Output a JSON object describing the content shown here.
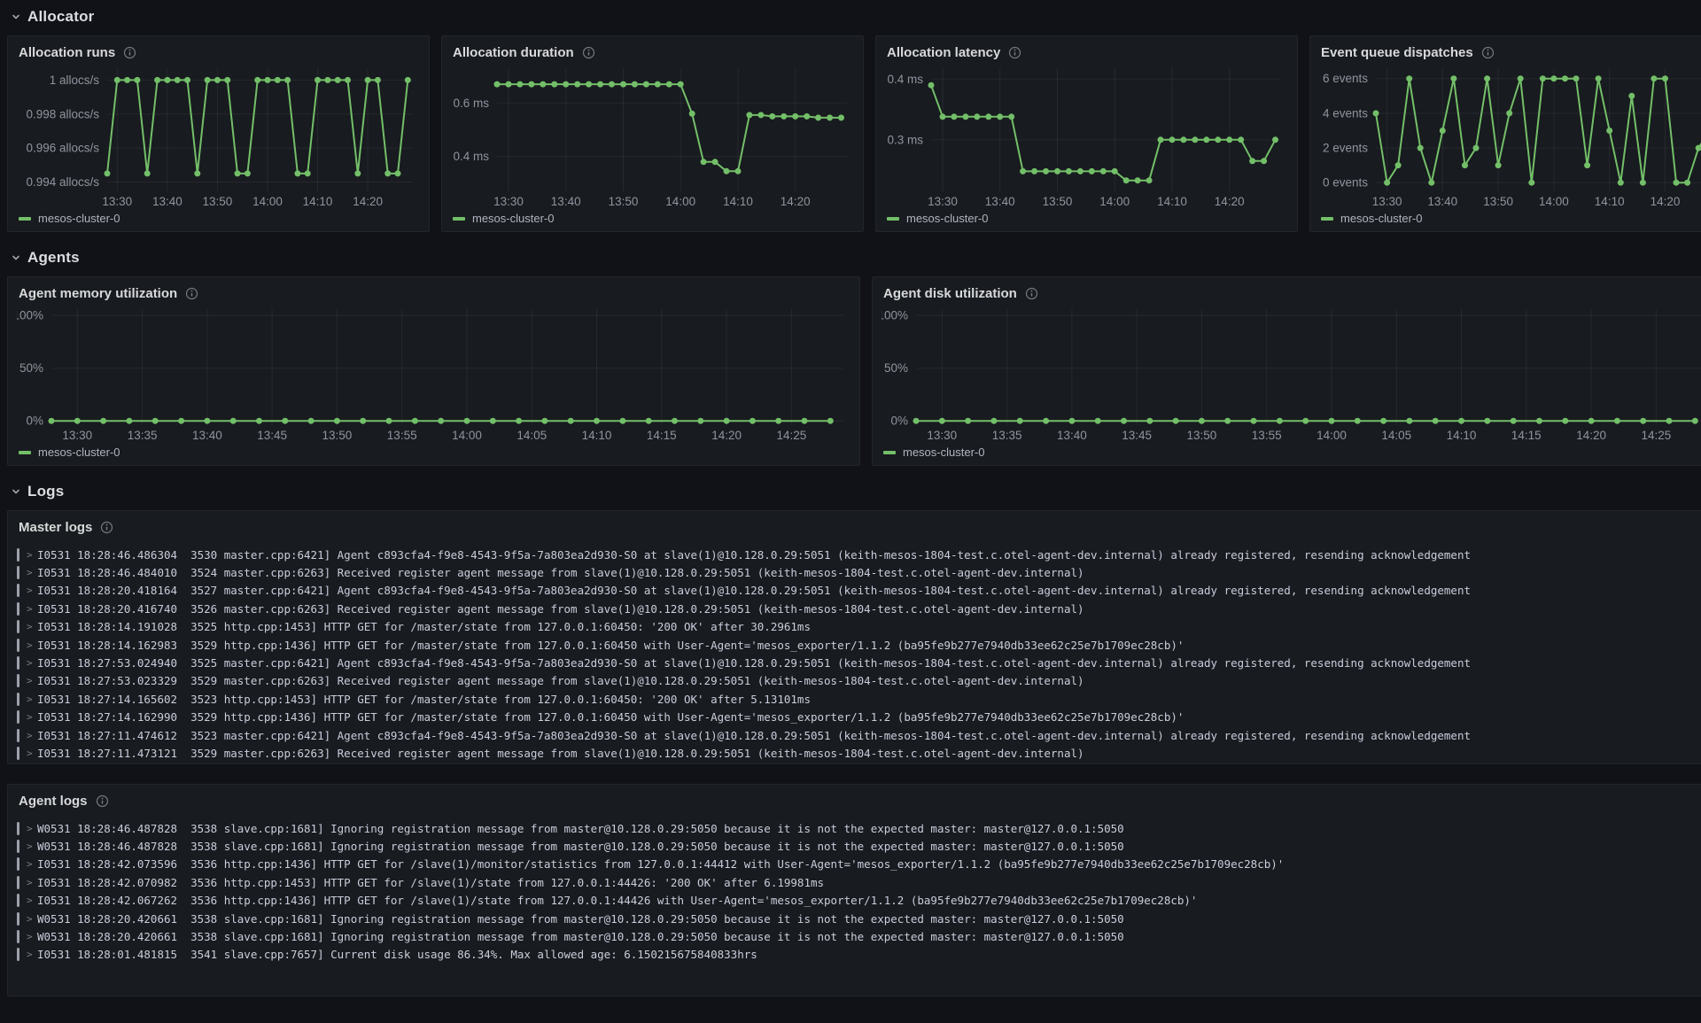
{
  "sections": {
    "allocator": {
      "title": "Allocator"
    },
    "agents": {
      "title": "Agents"
    },
    "logs": {
      "title": "Logs"
    }
  },
  "icons": {
    "log_expand": ">"
  },
  "series_color": "#73BF69",
  "charts": {
    "alloc_runs": {
      "title": "Allocation runs",
      "type": "line",
      "unit": "allocs/s",
      "legend": "mesos-cluster-0",
      "color": "#73BF69",
      "ylim": [
        0.99345,
        1.0007
      ],
      "yticks": [
        [
          1.0,
          "1 allocs/s"
        ],
        [
          0.998,
          "0.998 allocs/s"
        ],
        [
          0.996,
          "0.996 allocs/s"
        ],
        [
          0.994,
          "0.994 allocs/s"
        ]
      ],
      "xlim": [
        808,
        869
      ],
      "xticks": [
        [
          810,
          "13:30"
        ],
        [
          820,
          "13:40"
        ],
        [
          830,
          "13:50"
        ],
        [
          840,
          "14:00"
        ],
        [
          850,
          "14:10"
        ],
        [
          860,
          "14:20"
        ]
      ],
      "x_start": 808,
      "x_step": 2,
      "values": [
        0.9945,
        1,
        1,
        1,
        0.9945,
        1,
        1,
        1,
        1,
        0.9945,
        1,
        1,
        1,
        0.9945,
        0.9945,
        1,
        1,
        1,
        1,
        0.9945,
        0.9945,
        1,
        1,
        1,
        1,
        0.9945,
        1,
        1,
        0.9945,
        0.9945,
        1
      ]
    },
    "alloc_duration": {
      "title": "Allocation duration",
      "type": "line",
      "unit": "ms",
      "legend": "mesos-cluster-0",
      "color": "#73BF69",
      "ylim": [
        0.27,
        0.73
      ],
      "yticks": [
        [
          0.6,
          "0.6 ms"
        ],
        [
          0.4,
          "0.4 ms"
        ]
      ],
      "xlim": [
        808,
        869
      ],
      "xticks": [
        [
          810,
          "13:30"
        ],
        [
          820,
          "13:40"
        ],
        [
          830,
          "13:50"
        ],
        [
          840,
          "14:00"
        ],
        [
          850,
          "14:10"
        ],
        [
          860,
          "14:20"
        ]
      ],
      "x_start": 808,
      "x_step": 2,
      "values": [
        0.67,
        0.67,
        0.67,
        0.67,
        0.67,
        0.67,
        0.67,
        0.67,
        0.67,
        0.67,
        0.67,
        0.67,
        0.67,
        0.67,
        0.67,
        0.67,
        0.67,
        0.56,
        0.38,
        0.38,
        0.345,
        0.345,
        0.555,
        0.555,
        0.55,
        0.55,
        0.55,
        0.55,
        0.545,
        0.545,
        0.545
      ]
    },
    "alloc_latency": {
      "title": "Allocation latency",
      "type": "line",
      "unit": "ms",
      "legend": "mesos-cluster-0",
      "color": "#73BF69",
      "ylim": [
        0.215,
        0.418
      ],
      "yticks": [
        [
          0.4,
          "0.4 ms"
        ],
        [
          0.3,
          "0.3 ms"
        ]
      ],
      "xlim": [
        808,
        869
      ],
      "xticks": [
        [
          810,
          "13:30"
        ],
        [
          820,
          "13:40"
        ],
        [
          830,
          "13:50"
        ],
        [
          840,
          "14:00"
        ],
        [
          850,
          "14:10"
        ],
        [
          860,
          "14:20"
        ]
      ],
      "x_start": 808,
      "x_step": 2,
      "values": [
        0.39,
        0.338,
        0.338,
        0.338,
        0.338,
        0.338,
        0.338,
        0.338,
        0.248,
        0.248,
        0.248,
        0.248,
        0.248,
        0.248,
        0.248,
        0.248,
        0.248,
        0.233,
        0.233,
        0.233,
        0.3,
        0.3,
        0.3,
        0.3,
        0.3,
        0.3,
        0.3,
        0.3,
        0.265,
        0.265,
        0.3
      ]
    },
    "event_queue": {
      "title": "Event queue dispatches",
      "type": "line",
      "unit": "events",
      "legend": "mesos-cluster-0",
      "color": "#73BF69",
      "ylim": [
        -0.5,
        6.6
      ],
      "yticks": [
        [
          6,
          "6 events"
        ],
        [
          4,
          "4 events"
        ],
        [
          2,
          "2 events"
        ],
        [
          0,
          "0 events"
        ]
      ],
      "xlim": [
        808,
        869
      ],
      "xticks": [
        [
          810,
          "13:30"
        ],
        [
          820,
          "13:40"
        ],
        [
          830,
          "13:50"
        ],
        [
          840,
          "14:00"
        ],
        [
          850,
          "14:10"
        ],
        [
          860,
          "14:20"
        ]
      ],
      "x_start": 808,
      "x_step": 2,
      "values": [
        4,
        0,
        1,
        6,
        2,
        0,
        3,
        6,
        1,
        2,
        6,
        1,
        4,
        6,
        0,
        6,
        6,
        6,
        6,
        1,
        6,
        3,
        0,
        5,
        0,
        6,
        6,
        0,
        0,
        2,
        3
      ]
    },
    "agent_mem": {
      "title": "Agent memory utilization",
      "type": "line",
      "unit": "%",
      "legend": "mesos-cluster-0",
      "color": "#73BF69",
      "ylim": [
        -4,
        106
      ],
      "yticks": [
        [
          100,
          "100%"
        ],
        [
          50,
          "50%"
        ],
        [
          0,
          "0%"
        ]
      ],
      "xlim": [
        808,
        869
      ],
      "xticks": [
        [
          810,
          "13:30"
        ],
        [
          815,
          "13:35"
        ],
        [
          820,
          "13:40"
        ],
        [
          825,
          "13:45"
        ],
        [
          830,
          "13:50"
        ],
        [
          835,
          "13:55"
        ],
        [
          840,
          "14:00"
        ],
        [
          845,
          "14:05"
        ],
        [
          850,
          "14:10"
        ],
        [
          855,
          "14:15"
        ],
        [
          860,
          "14:20"
        ],
        [
          865,
          "14:25"
        ]
      ],
      "x_start": 808,
      "x_step": 2,
      "values": [
        0,
        0,
        0,
        0,
        0,
        0,
        0,
        0,
        0,
        0,
        0,
        0,
        0,
        0,
        0,
        0,
        0,
        0,
        0,
        0,
        0,
        0,
        0,
        0,
        0,
        0,
        0,
        0,
        0,
        0,
        0
      ]
    },
    "agent_disk": {
      "title": "Agent disk utilization",
      "type": "line",
      "unit": "%",
      "legend": "mesos-cluster-0",
      "color": "#73BF69",
      "ylim": [
        -4,
        106
      ],
      "yticks": [
        [
          100,
          "100%"
        ],
        [
          50,
          "50%"
        ],
        [
          0,
          "0%"
        ]
      ],
      "xlim": [
        808,
        869
      ],
      "xticks": [
        [
          810,
          "13:30"
        ],
        [
          815,
          "13:35"
        ],
        [
          820,
          "13:40"
        ],
        [
          825,
          "13:45"
        ],
        [
          830,
          "13:50"
        ],
        [
          835,
          "13:55"
        ],
        [
          840,
          "14:00"
        ],
        [
          845,
          "14:05"
        ],
        [
          850,
          "14:10"
        ],
        [
          855,
          "14:15"
        ],
        [
          860,
          "14:20"
        ],
        [
          865,
          "14:25"
        ]
      ],
      "x_start": 808,
      "x_step": 2,
      "values": [
        0,
        0,
        0,
        0,
        0,
        0,
        0,
        0,
        0,
        0,
        0,
        0,
        0,
        0,
        0,
        0,
        0,
        0,
        0,
        0,
        0,
        0,
        0,
        0,
        0,
        0,
        0,
        0,
        0,
        0,
        0
      ]
    }
  },
  "logs": {
    "master": {
      "title": "Master logs",
      "lines": [
        "I0531 18:28:46.486304  3530 master.cpp:6421] Agent c893cfa4-f9e8-4543-9f5a-7a803ea2d930-S0 at slave(1)@10.128.0.29:5051 (keith-mesos-1804-test.c.otel-agent-dev.internal) already registered, resending acknowledgement",
        "I0531 18:28:46.484010  3524 master.cpp:6263] Received register agent message from slave(1)@10.128.0.29:5051 (keith-mesos-1804-test.c.otel-agent-dev.internal)",
        "I0531 18:28:20.418164  3527 master.cpp:6421] Agent c893cfa4-f9e8-4543-9f5a-7a803ea2d930-S0 at slave(1)@10.128.0.29:5051 (keith-mesos-1804-test.c.otel-agent-dev.internal) already registered, resending acknowledgement",
        "I0531 18:28:20.416740  3526 master.cpp:6263] Received register agent message from slave(1)@10.128.0.29:5051 (keith-mesos-1804-test.c.otel-agent-dev.internal)",
        "I0531 18:28:14.191028  3525 http.cpp:1453] HTTP GET for /master/state from 127.0.0.1:60450: '200 OK' after 30.2961ms",
        "I0531 18:28:14.162983  3529 http.cpp:1436] HTTP GET for /master/state from 127.0.0.1:60450 with User-Agent='mesos_exporter/1.1.2 (ba95fe9b277e7940db33ee62c25e7b1709ec28cb)'",
        "I0531 18:27:53.024940  3525 master.cpp:6421] Agent c893cfa4-f9e8-4543-9f5a-7a803ea2d930-S0 at slave(1)@10.128.0.29:5051 (keith-mesos-1804-test.c.otel-agent-dev.internal) already registered, resending acknowledgement",
        "I0531 18:27:53.023329  3529 master.cpp:6263] Received register agent message from slave(1)@10.128.0.29:5051 (keith-mesos-1804-test.c.otel-agent-dev.internal)",
        "I0531 18:27:14.165602  3523 http.cpp:1453] HTTP GET for /master/state from 127.0.0.1:60450: '200 OK' after 5.13101ms",
        "I0531 18:27:14.162990  3529 http.cpp:1436] HTTP GET for /master/state from 127.0.0.1:60450 with User-Agent='mesos_exporter/1.1.2 (ba95fe9b277e7940db33ee62c25e7b1709ec28cb)'",
        "I0531 18:27:11.474612  3523 master.cpp:6421] Agent c893cfa4-f9e8-4543-9f5a-7a803ea2d930-S0 at slave(1)@10.128.0.29:5051 (keith-mesos-1804-test.c.otel-agent-dev.internal) already registered, resending acknowledgement",
        "I0531 18:27:11.473121  3529 master.cpp:6263] Received register agent message from slave(1)@10.128.0.29:5051 (keith-mesos-1804-test.c.otel-agent-dev.internal)"
      ]
    },
    "agent": {
      "title": "Agent logs",
      "lines": [
        "W0531 18:28:46.487828  3538 slave.cpp:1681] Ignoring registration message from master@10.128.0.29:5050 because it is not the expected master: master@127.0.0.1:5050",
        "W0531 18:28:46.487828  3538 slave.cpp:1681] Ignoring registration message from master@10.128.0.29:5050 because it is not the expected master: master@127.0.0.1:5050",
        "I0531 18:28:42.073596  3536 http.cpp:1436] HTTP GET for /slave(1)/monitor/statistics from 127.0.0.1:44412 with User-Agent='mesos_exporter/1.1.2 (ba95fe9b277e7940db33ee62c25e7b1709ec28cb)'",
        "I0531 18:28:42.070982  3536 http.cpp:1453] HTTP GET for /slave(1)/state from 127.0.0.1:44426: '200 OK' after 6.19981ms",
        "I0531 18:28:42.067262  3536 http.cpp:1436] HTTP GET for /slave(1)/state from 127.0.0.1:44426 with User-Agent='mesos_exporter/1.1.2 (ba95fe9b277e7940db33ee62c25e7b1709ec28cb)'",
        "W0531 18:28:20.420661  3538 slave.cpp:1681] Ignoring registration message from master@10.128.0.29:5050 because it is not the expected master: master@127.0.0.1:5050",
        "W0531 18:28:20.420661  3538 slave.cpp:1681] Ignoring registration message from master@10.128.0.29:5050 because it is not the expected master: master@127.0.0.1:5050",
        "I0531 18:28:01.481815  3541 slave.cpp:7657] Current disk usage 86.34%. Max allowed age: 6.150215675840833hrs"
      ]
    }
  }
}
